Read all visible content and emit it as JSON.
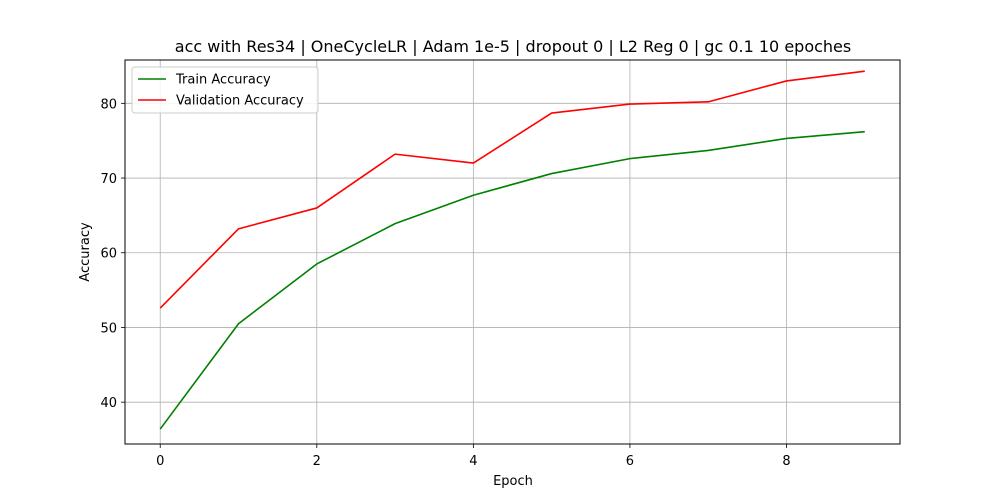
{
  "chart_data": {
    "type": "line",
    "title": "acc with Res34 | OneCycleLR | Adam 1e-5 | dropout 0 | L2 Reg 0 | gc 0.1 10 epoches",
    "xlabel": "Epoch",
    "ylabel": "Accuracy",
    "xlim": [
      -0.45,
      9.45
    ],
    "ylim": [
      34.4,
      85.8
    ],
    "xticks": [
      0,
      2,
      4,
      6,
      8
    ],
    "yticks": [
      40,
      50,
      60,
      70,
      80
    ],
    "grid": true,
    "legend_position": "upper left",
    "x": [
      0,
      1,
      2,
      3,
      4,
      5,
      6,
      7,
      8,
      9
    ],
    "series": [
      {
        "name": "Train Accuracy",
        "color": "#008000",
        "values": [
          36.4,
          50.5,
          58.5,
          63.9,
          67.7,
          70.6,
          72.6,
          73.7,
          75.3,
          76.2
        ]
      },
      {
        "name": "Validation Accuracy",
        "color": "#ff0000",
        "values": [
          52.6,
          63.2,
          66.0,
          73.2,
          72.0,
          78.7,
          79.9,
          80.2,
          83.0,
          84.3
        ]
      }
    ]
  }
}
